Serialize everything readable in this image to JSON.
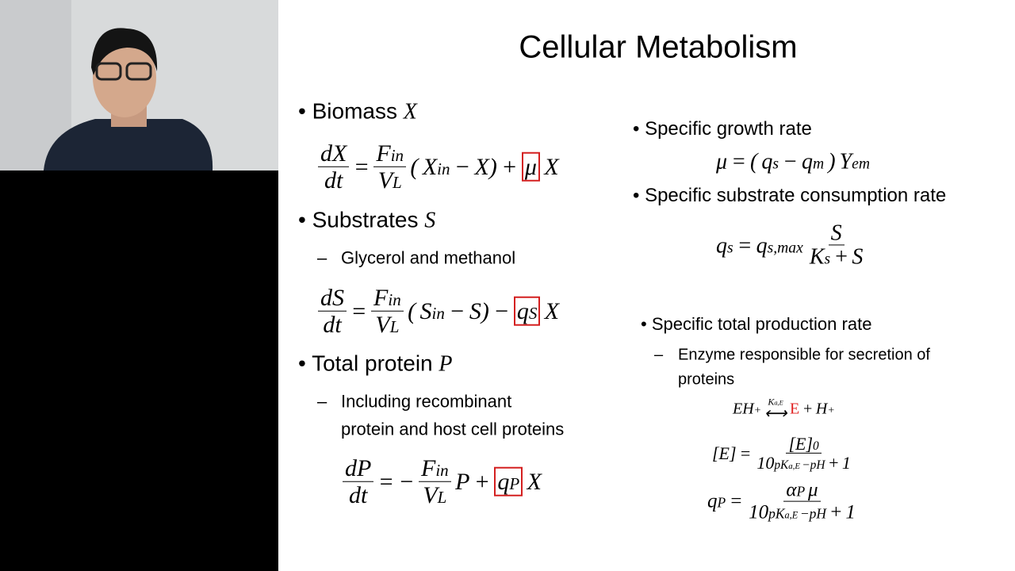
{
  "title": "Cellular Metabolism",
  "left": [
    {
      "kind": "bullet",
      "text": "Biomass",
      "symbol": "X"
    },
    {
      "kind": "eq",
      "math": [
        {
          "num": "dX",
          "den": "dt"
        },
        "=",
        {
          "num": {
            "base": "F",
            "sub": "in"
          },
          "den": {
            "base": "V",
            "sub": "L"
          }
        },
        "(",
        {
          "base": "X",
          "sub": "in"
        },
        "−",
        "X)",
        "+",
        {
          "boxed": "μ"
        },
        "X"
      ]
    },
    {
      "kind": "bullet",
      "text": "Substrates",
      "symbol": "S"
    },
    {
      "kind": "sub",
      "lines": [
        "Glycerol and methanol"
      ]
    },
    {
      "kind": "eq",
      "math": [
        {
          "num": "dS",
          "den": "dt"
        },
        "=",
        {
          "num": {
            "base": "F",
            "sub": "in"
          },
          "den": {
            "base": "V",
            "sub": "L"
          }
        },
        "(",
        {
          "base": "S",
          "sub": "in"
        },
        "−",
        "S)",
        "−",
        {
          "boxed": {
            "base": "q",
            "sub": "S"
          }
        },
        "X"
      ]
    },
    {
      "kind": "bullet",
      "text": "Total protein",
      "symbol": "P"
    },
    {
      "kind": "sub",
      "lines": [
        "Including recombinant",
        "protein and host cell proteins"
      ]
    },
    {
      "kind": "eq",
      "math": [
        {
          "num": "dP",
          "den": "dt"
        },
        "=",
        "−",
        {
          "num": {
            "base": "F",
            "sub": "in"
          },
          "den": {
            "base": "V",
            "sub": "L"
          }
        },
        "P",
        "+",
        {
          "boxed": {
            "base": "q",
            "sub": "P"
          }
        },
        "X"
      ]
    }
  ],
  "right": [
    {
      "kind": "bullet",
      "text": "Specific growth rate"
    },
    {
      "kind": "eq",
      "math": [
        "μ",
        "=",
        "(",
        {
          "base": "q",
          "sub": "s"
        },
        "−",
        {
          "base": "q",
          "sub": "m"
        },
        ")",
        {
          "base": "Y",
          "sub": "em"
        }
      ]
    },
    {
      "kind": "bullet",
      "text": "Specific substrate consumption rate"
    },
    {
      "kind": "eq",
      "math": [
        {
          "base": "q",
          "sub": "s"
        },
        "=",
        {
          "base": "q",
          "sub": "s,max"
        },
        {
          "num": "S",
          "den": [
            {
              "base": "K",
              "sub": "s"
            },
            "+",
            "S"
          ]
        }
      ]
    },
    {
      "kind": "bullet",
      "text": "Specific total production rate"
    },
    {
      "kind": "sub",
      "lines": [
        "Enzyme responsible for secretion of",
        "proteins"
      ]
    },
    {
      "kind": "eq",
      "math": [
        {
          "base": "EH",
          "sup": "+"
        },
        {
          "over": {
            "base": "K",
            "sub": "a,E"
          },
          "under": "⟷"
        },
        {
          "red": "E"
        },
        "+",
        {
          "base": "H",
          "sup": "+"
        }
      ]
    },
    {
      "kind": "eq",
      "math": [
        "[E]",
        "=",
        {
          "num": {
            "base": "[E]",
            "sub": "0"
          },
          "den": [
            {
              "base": "10",
              "sup": [
                {
                  "base": "pK",
                  "sub": "a,E"
                },
                "−pH"
              ]
            },
            "+",
            "1"
          ]
        }
      ]
    },
    {
      "kind": "eq",
      "math": [
        {
          "base": "q",
          "sub": "P"
        },
        "=",
        {
          "num": [
            {
              "base": "α",
              "sub": "P"
            },
            "μ"
          ],
          "den": [
            {
              "base": "10",
              "sup": [
                {
                  "base": "pK",
                  "sub": "a,E"
                },
                "−pH"
              ]
            },
            "+",
            "1"
          ]
        }
      ]
    }
  ]
}
